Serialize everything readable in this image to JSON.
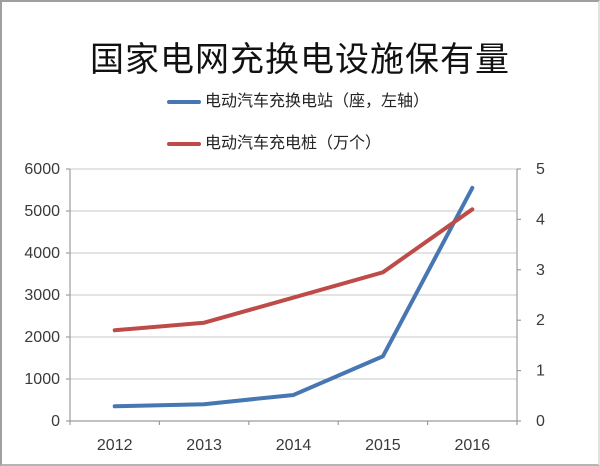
{
  "title": "国家电网充换电设施保有量",
  "legend": [
    {
      "label": "电动汽车充换电站（座，左轴）",
      "color": "#4677B2"
    },
    {
      "label": "电动汽车充电桩（万个）",
      "color": "#BE4B48"
    }
  ],
  "chart_data": {
    "type": "line",
    "title": "国家电网充换电设施保有量",
    "categories": [
      "2012",
      "2013",
      "2014",
      "2015",
      "2016"
    ],
    "series": [
      {
        "name": "电动汽车充换电站（座，左轴）",
        "axis": "left",
        "color": "#4677B2",
        "values": [
          350,
          400,
          620,
          1540,
          5550
        ]
      },
      {
        "name": "电动汽车充电桩（万个）",
        "axis": "right",
        "color": "#BE4B48",
        "values": [
          1.8,
          1.95,
          2.45,
          2.95,
          4.2
        ]
      }
    ],
    "left_axis": {
      "min": 0,
      "max": 6000,
      "step": 1000,
      "tick_labels": [
        "0",
        "1000",
        "2000",
        "3000",
        "4000",
        "5000",
        "6000"
      ]
    },
    "right_axis": {
      "min": 0,
      "max": 5,
      "step": 1,
      "tick_labels": [
        "0",
        "1",
        "2",
        "3",
        "4",
        "5"
      ]
    },
    "grid": "horizontal",
    "legend_position": "top"
  },
  "colors": {
    "gridline": "#c8c8c8",
    "axis_line": "#9c9c9c",
    "tick_label": "#3a3a3a"
  }
}
